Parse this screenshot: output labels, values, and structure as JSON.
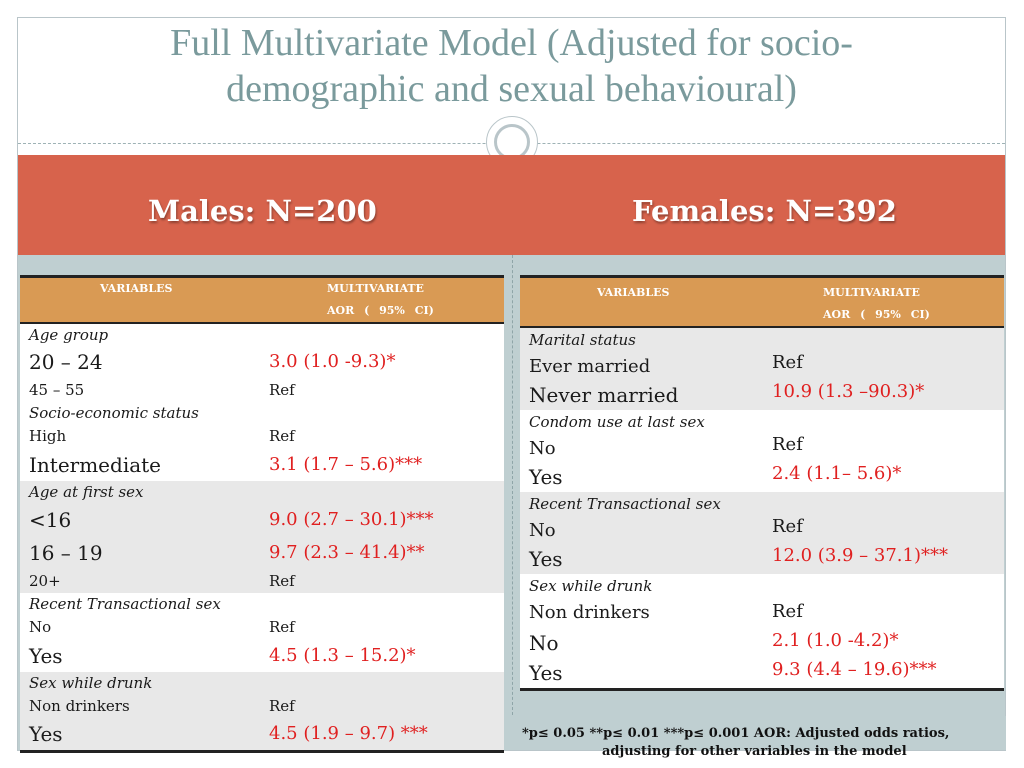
{
  "title": {
    "line1": "Full Multivariate Model (Adjusted for socio-",
    "line2": "demographic and sexual behavioural)"
  },
  "band": {
    "males_label": "Males: N=200",
    "females_label": "Females: N=392"
  },
  "males_table": {
    "headers": {
      "variables": "VARIABLES",
      "multivariate": "MULTIVARIATE",
      "aor": "AOR ( 95% CI)"
    },
    "rows": [
      {
        "type": "cat",
        "label": "Age group",
        "shade": "plain"
      },
      {
        "type": "lvl",
        "label": "20 – 24",
        "value": "3.0 (1.0 -9.3)*",
        "red": true,
        "big": true,
        "shade": "plain"
      },
      {
        "type": "lvl",
        "label": "45 – 55",
        "value": "Ref",
        "red": false,
        "big": false,
        "shade": "plain"
      },
      {
        "type": "cat",
        "label": "Socio-economic status",
        "shade": "plain"
      },
      {
        "type": "lvl",
        "label": "High",
        "value": "Ref",
        "red": false,
        "big": false,
        "shade": "plain"
      },
      {
        "type": "lvl",
        "label": "Intermediate",
        "value": "3.1 (1.7 – 5.6)***",
        "red": true,
        "big": true,
        "shade": "plain"
      },
      {
        "type": "cat",
        "label": "Age at first sex",
        "shade": "shaded"
      },
      {
        "type": "lvl",
        "label": "<16",
        "value": "9.0 (2.7 – 30.1)***",
        "red": true,
        "big": true,
        "shade": "shaded"
      },
      {
        "type": "lvl",
        "label": "16 – 19",
        "value": "9.7 (2.3 – 41.4)**",
        "red": true,
        "big": true,
        "shade": "shaded"
      },
      {
        "type": "lvl",
        "label": "20+",
        "value": "Ref",
        "red": false,
        "big": false,
        "shade": "shaded"
      },
      {
        "type": "cat",
        "label": "Recent Transactional sex",
        "shade": "plain"
      },
      {
        "type": "lvl",
        "label": "No",
        "value": "Ref",
        "red": false,
        "big": false,
        "shade": "plain"
      },
      {
        "type": "lvl",
        "label": "Yes",
        "value": "4.5 (1.3 – 15.2)*",
        "red": true,
        "big": true,
        "shade": "plain"
      },
      {
        "type": "cat",
        "label": "Sex while drunk",
        "shade": "shaded"
      },
      {
        "type": "lvl",
        "label": "Non drinkers",
        "value": "Ref",
        "red": false,
        "big": false,
        "shade": "shaded"
      },
      {
        "type": "lvl",
        "label": "Yes",
        "value": "4.5 (1.9 – 9.7) ***",
        "red": true,
        "big": true,
        "shade": "shaded"
      }
    ]
  },
  "females_table": {
    "headers": {
      "variables": "VARIABLES",
      "multivariate": "MULTIVARIATE",
      "aor": "AOR ( 95% CI)"
    },
    "groups": [
      {
        "category": "Marital status",
        "levels": [
          "Ever married",
          "Never married"
        ],
        "values": [
          "Ref",
          "10.9 (1.3 –90.3)*"
        ],
        "shade": "shaded"
      },
      {
        "category": "Condom use at last sex",
        "levels": [
          "No",
          "Yes"
        ],
        "values": [
          "Ref",
          "2.4 (1.1– 5.6)*"
        ],
        "shade": "plain"
      },
      {
        "category": "Recent Transactional sex",
        "levels": [
          "No",
          "Yes"
        ],
        "values": [
          "Ref",
          "12.0 (3.9 – 37.1)***"
        ],
        "shade": "shaded"
      },
      {
        "category": "Sex while drunk",
        "levels": [
          "Non drinkers",
          "No",
          "Yes"
        ],
        "values": [
          "Ref",
          "2.1 (1.0 -4.2)*",
          "9.3 (4.4 – 19.6)***"
        ],
        "shade": "plain"
      }
    ]
  },
  "footnote": {
    "line1": "*p≤ 0.05   **p≤ 0.01   ***p≤ 0.001   AOR: Adjusted odds ratios,",
    "line2": "adjusting for other variables in the model"
  },
  "colors": {
    "band": "#d7634c",
    "header": "#d99a54",
    "significant": "#e02020",
    "title": "#7a9a9c",
    "panel": "#bfcfd1"
  }
}
